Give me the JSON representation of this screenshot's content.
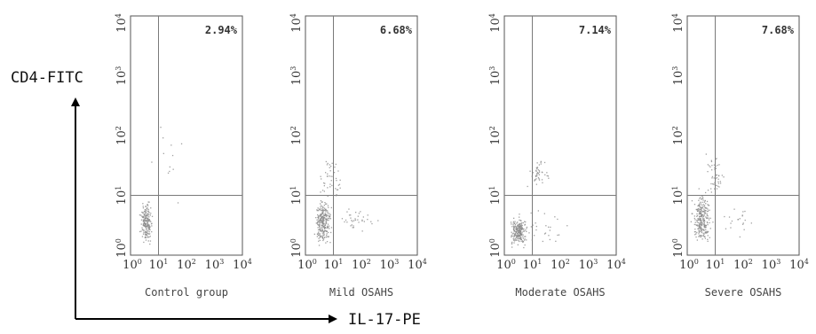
{
  "chart_data": [
    {
      "type": "scatter",
      "caption": "Control group",
      "percentage": "2.94%",
      "ticks": [
        "10",
        "10",
        "10",
        "10",
        "10"
      ],
      "exponents": [
        "0",
        "1",
        "2",
        "3",
        "4"
      ],
      "xlim": [
        0,
        4
      ],
      "ylim": [
        0,
        4
      ],
      "gate": {
        "x": 1,
        "y": 1
      },
      "log_scale": true
    },
    {
      "type": "scatter",
      "caption": "Mild OSAHS",
      "percentage": "6.68%",
      "ticks": [
        "10",
        "10",
        "10",
        "10",
        "10"
      ],
      "exponents": [
        "0",
        "1",
        "2",
        "3",
        "4"
      ],
      "xlim": [
        0,
        4
      ],
      "ylim": [
        0,
        4
      ],
      "gate": {
        "x": 1,
        "y": 1
      },
      "log_scale": true
    },
    {
      "type": "scatter",
      "caption": "Moderate OSAHS",
      "percentage": "7.14%",
      "ticks": [
        "10",
        "10",
        "10",
        "10",
        "10"
      ],
      "exponents": [
        "0",
        "1",
        "2",
        "3",
        "4"
      ],
      "xlim": [
        0,
        4
      ],
      "ylim": [
        0,
        4
      ],
      "gate": {
        "x": 1,
        "y": 1
      },
      "log_scale": true
    },
    {
      "type": "scatter",
      "caption": "Severe OSAHS",
      "percentage": "7.68%",
      "ticks": [
        "10",
        "10",
        "10",
        "10",
        "10"
      ],
      "exponents": [
        "0",
        "1",
        "2",
        "3",
        "4"
      ],
      "xlim": [
        0,
        4
      ],
      "ylim": [
        0,
        4
      ],
      "gate": {
        "x": 1,
        "y": 1
      },
      "log_scale": true
    }
  ],
  "axis_labels": {
    "y": "CD4-FITC",
    "x": "IL-17-PE"
  },
  "colors": {
    "points": "#8a8a8a",
    "frame": "#555555",
    "gate": "#7a7a7a",
    "arrow": "#000000"
  }
}
